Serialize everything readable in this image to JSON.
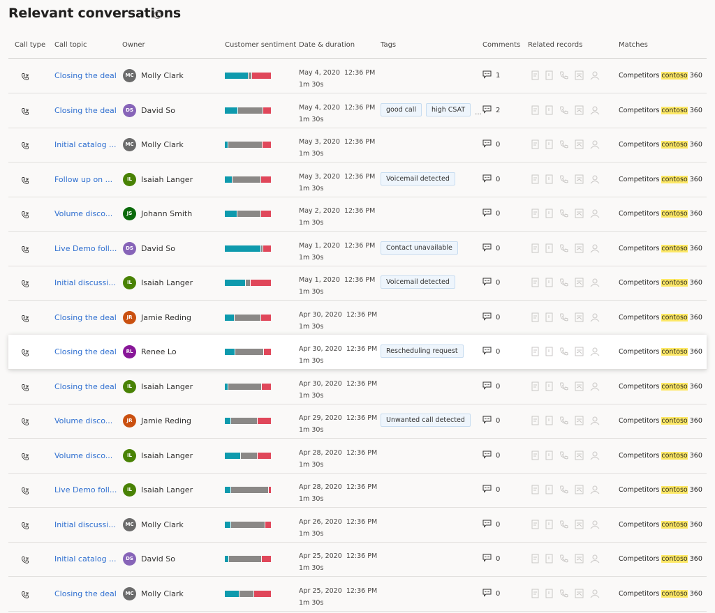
{
  "title": "Relevant conversations",
  "columns": [
    "Call type",
    "Call topic",
    "Owner",
    "Customer sentiment",
    "Date & duration",
    "Tags",
    "Comments",
    "Related records",
    "Matches"
  ],
  "sentiment_colors": [
    "#0e9aad",
    "#8a8886",
    "#e0475a"
  ],
  "highlighted_row": 8,
  "rows": [
    {
      "call_topic": "Closing the deal",
      "initials": "MC",
      "owner": "Molly Clark",
      "avatar_color": "#6b6b6b",
      "sentiment": [
        52,
        6,
        42
      ],
      "date": "May 4, 2020",
      "time": "12:36 PM",
      "duration": "1m 30s",
      "tags": [],
      "comments": 1,
      "matches": {
        "label": "Competitors",
        "keyword": "contoso",
        "count": 360
      }
    },
    {
      "call_topic": "Closing the deal",
      "initials": "DS",
      "owner": "David So",
      "avatar_color": "#8764b8",
      "sentiment": [
        28,
        55,
        17
      ],
      "date": "May 4, 2020",
      "time": "12:36 PM",
      "duration": "1m 30s",
      "tags": [
        "good call",
        "high CSAT"
      ],
      "tags_overflow": "...",
      "comments": 2,
      "matches": {
        "label": "Competitors",
        "keyword": "contoso",
        "count": 360
      }
    },
    {
      "call_topic": "Initial catalog ...",
      "initials": "MC",
      "owner": "Molly Clark",
      "avatar_color": "#6b6b6b",
      "sentiment": [
        6,
        75,
        19
      ],
      "date": "May 3, 2020",
      "time": "12:36 PM",
      "duration": "1m 30s",
      "tags": [],
      "comments": 0,
      "matches": {
        "label": "Competitors",
        "keyword": "contoso",
        "count": 360
      }
    },
    {
      "call_topic": "Follow up on ...",
      "initials": "IL",
      "owner": "Isaiah Langer",
      "avatar_color": "#498205",
      "sentiment": [
        15,
        63,
        22
      ],
      "date": "May 3, 2020",
      "time": "12:36 PM",
      "duration": "1m 30s",
      "tags": [
        "Voicemail detected"
      ],
      "comments": 0,
      "matches": {
        "label": "Competitors",
        "keyword": "contoso",
        "count": 360
      }
    },
    {
      "call_topic": "Volume disco...",
      "initials": "JS",
      "owner": "Johann Smith",
      "avatar_color": "#0b6a0b",
      "sentiment": [
        26,
        52,
        22
      ],
      "date": "May 2, 2020",
      "time": "12:36 PM",
      "duration": "1m 30s",
      "tags": [],
      "comments": 0,
      "matches": {
        "label": "Competitors",
        "keyword": "contoso",
        "count": 360
      }
    },
    {
      "call_topic": "Live Demo foll...",
      "initials": "DS",
      "owner": "David So",
      "avatar_color": "#8764b8",
      "sentiment": [
        80,
        3,
        17
      ],
      "date": "May 1, 2020",
      "time": "12:36 PM",
      "duration": "1m 30s",
      "tags": [
        "Contact unavailable"
      ],
      "comments": 0,
      "matches": {
        "label": "Competitors",
        "keyword": "contoso",
        "count": 360
      }
    },
    {
      "call_topic": "Initial discussi...",
      "initials": "IL",
      "owner": "Isaiah Langer",
      "avatar_color": "#498205",
      "sentiment": [
        46,
        9,
        45
      ],
      "date": "May 1, 2020",
      "time": "12:36 PM",
      "duration": "1m 30s",
      "tags": [
        "Voicemail detected"
      ],
      "comments": 0,
      "matches": {
        "label": "Competitors",
        "keyword": "contoso",
        "count": 360
      }
    },
    {
      "call_topic": "Closing the deal",
      "initials": "JR",
      "owner": "Jamie Reding",
      "avatar_color": "#ca5010",
      "sentiment": [
        20,
        58,
        22
      ],
      "date": "Apr 30, 2020",
      "time": "12:36 PM",
      "duration": "1m 30s",
      "tags": [],
      "comments": 0,
      "matches": {
        "label": "Competitors",
        "keyword": "contoso",
        "count": 360
      }
    },
    {
      "call_topic": "Closing the deal",
      "initials": "RL",
      "owner": "Renee Lo",
      "avatar_color": "#881798",
      "sentiment": [
        22,
        62,
        16
      ],
      "date": "Apr 30, 2020",
      "time": "12:36 PM",
      "duration": "1m 30s",
      "tags": [
        "Rescheduling request"
      ],
      "comments": 0,
      "matches": {
        "label": "Competitors",
        "keyword": "contoso",
        "count": 360
      }
    },
    {
      "call_topic": "Closing the deal",
      "initials": "IL",
      "owner": "Isaiah Langer",
      "avatar_color": "#498205",
      "sentiment": [
        6,
        74,
        20
      ],
      "date": "Apr 30, 2020",
      "time": "12:36 PM",
      "duration": "1m 30s",
      "tags": [],
      "comments": 0,
      "matches": {
        "label": "Competitors",
        "keyword": "contoso",
        "count": 360
      }
    },
    {
      "call_topic": "Volume disco...",
      "initials": "JR",
      "owner": "Jamie Reding",
      "avatar_color": "#ca5010",
      "sentiment": [
        12,
        59,
        29
      ],
      "date": "Apr 29, 2020",
      "time": "12:36 PM",
      "duration": "1m 30s",
      "tags": [
        "Unwanted call detected"
      ],
      "comments": 0,
      "matches": {
        "label": "Competitors",
        "keyword": "contoso",
        "count": 360
      }
    },
    {
      "call_topic": "Volume disco...",
      "initials": "IL",
      "owner": "Isaiah Langer",
      "avatar_color": "#498205",
      "sentiment": [
        35,
        35,
        30
      ],
      "date": "Apr 28, 2020",
      "time": "12:36 PM",
      "duration": "1m 30s",
      "tags": [],
      "comments": 0,
      "matches": {
        "label": "Competitors",
        "keyword": "contoso",
        "count": 360
      }
    },
    {
      "call_topic": "Live Demo foll...",
      "initials": "IL",
      "owner": "Isaiah Langer",
      "avatar_color": "#498205",
      "sentiment": [
        12,
        84,
        4
      ],
      "date": "Apr 28, 2020",
      "time": "12:36 PM",
      "duration": "1m 30s",
      "tags": [],
      "comments": 0,
      "matches": {
        "label": "Competitors",
        "keyword": "contoso",
        "count": 360
      }
    },
    {
      "call_topic": "Initial discussi...",
      "initials": "MC",
      "owner": "Molly Clark",
      "avatar_color": "#6b6b6b",
      "sentiment": [
        12,
        76,
        12
      ],
      "date": "Apr 26, 2020",
      "time": "12:36 PM",
      "duration": "1m 30s",
      "tags": [],
      "comments": 0,
      "matches": {
        "label": "Competitors",
        "keyword": "contoso",
        "count": 360
      }
    },
    {
      "call_topic": "Initial catalog ...",
      "initials": "DS",
      "owner": "David So",
      "avatar_color": "#8764b8",
      "sentiment": [
        8,
        72,
        20
      ],
      "date": "Apr 25, 2020",
      "time": "12:36 PM",
      "duration": "1m 30s",
      "tags": [],
      "comments": 0,
      "matches": {
        "label": "Competitors",
        "keyword": "contoso",
        "count": 360
      }
    },
    {
      "call_topic": "Closing the deal",
      "initials": "MC",
      "owner": "Molly Clark",
      "avatar_color": "#6b6b6b",
      "sentiment": [
        32,
        31,
        37
      ],
      "date": "Apr 25, 2020",
      "time": "12:36 PM",
      "duration": "1m 30s",
      "tags": [],
      "comments": 0,
      "matches": {
        "label": "Competitors",
        "keyword": "contoso",
        "count": 360
      }
    }
  ]
}
